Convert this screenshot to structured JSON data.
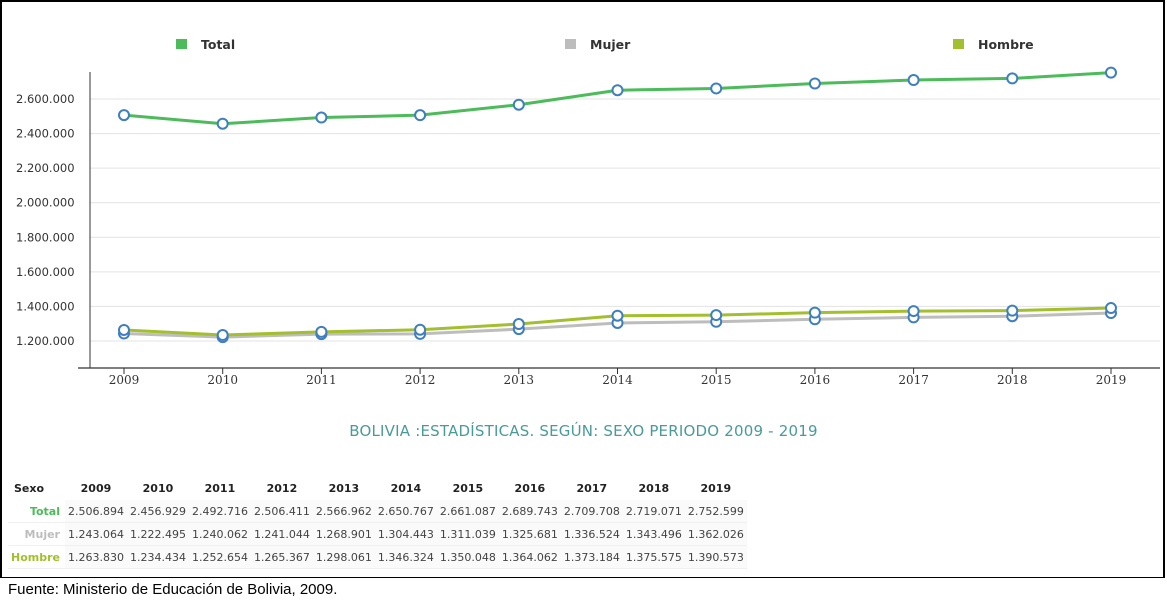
{
  "chart_data": {
    "type": "line",
    "title": "BOLIVIA :ESTADÍSTICAS. SEGÚN: SEXO PERIODO 2009 - 2019",
    "x": [
      "2009",
      "2010",
      "2011",
      "2012",
      "2013",
      "2014",
      "2015",
      "2016",
      "2017",
      "2018",
      "2019"
    ],
    "ylim": [
      1050000,
      2780000
    ],
    "yticks": [
      "1.200.000",
      "1.400.000",
      "1.600.000",
      "1.800.000",
      "2.000.000",
      "2.200.000",
      "2.400.000",
      "2.600.000"
    ],
    "ytick_values": [
      1200000,
      1400000,
      1600000,
      1800000,
      2000000,
      2200000,
      2400000,
      2600000
    ],
    "grid": true,
    "legend_position": "top",
    "series": [
      {
        "name": "Total",
        "color": "#4cbb5a",
        "values": [
          2506894,
          2456929,
          2492716,
          2506411,
          2566962,
          2650767,
          2661087,
          2689743,
          2709708,
          2719071,
          2752599
        ]
      },
      {
        "name": "Mujer",
        "color": "#bdbdbd",
        "values": [
          1243064,
          1222495,
          1240062,
          1241044,
          1268901,
          1304443,
          1311039,
          1325681,
          1336524,
          1343496,
          1362026
        ]
      },
      {
        "name": "Hombre",
        "color": "#a3bf2e",
        "values": [
          1263830,
          1234434,
          1252654,
          1265367,
          1298061,
          1346324,
          1350048,
          1364062,
          1373184,
          1375575,
          1390573
        ]
      }
    ],
    "marker_color": "#3f7fc0"
  },
  "table": {
    "header": [
      "Sexo",
      "2009",
      "2010",
      "2011",
      "2012",
      "2013",
      "2014",
      "2015",
      "2016",
      "2017",
      "2018",
      "2019"
    ],
    "rows": [
      {
        "label": "Total",
        "color": "#4cbb5a",
        "cells": [
          "2.506.894",
          "2.456.929",
          "2.492.716",
          "2.506.411",
          "2.566.962",
          "2.650.767",
          "2.661.087",
          "2.689.743",
          "2.709.708",
          "2.719.071",
          "2.752.599"
        ]
      },
      {
        "label": "Mujer",
        "color": "#bdbdbd",
        "cells": [
          "1.243.064",
          "1.222.495",
          "1.240.062",
          "1.241.044",
          "1.268.901",
          "1.304.443",
          "1.311.039",
          "1.325.681",
          "1.336.524",
          "1.343.496",
          "1.362.026"
        ]
      },
      {
        "label": "Hombre",
        "color": "#a3bf2e",
        "cells": [
          "1.263.830",
          "1.234.434",
          "1.252.654",
          "1.265.367",
          "1.298.061",
          "1.346.324",
          "1.350.048",
          "1.364.062",
          "1.373.184",
          "1.375.575",
          "1.390.573"
        ]
      }
    ]
  },
  "source": "Fuente: Ministerio de Educación de Bolivia, 2009."
}
